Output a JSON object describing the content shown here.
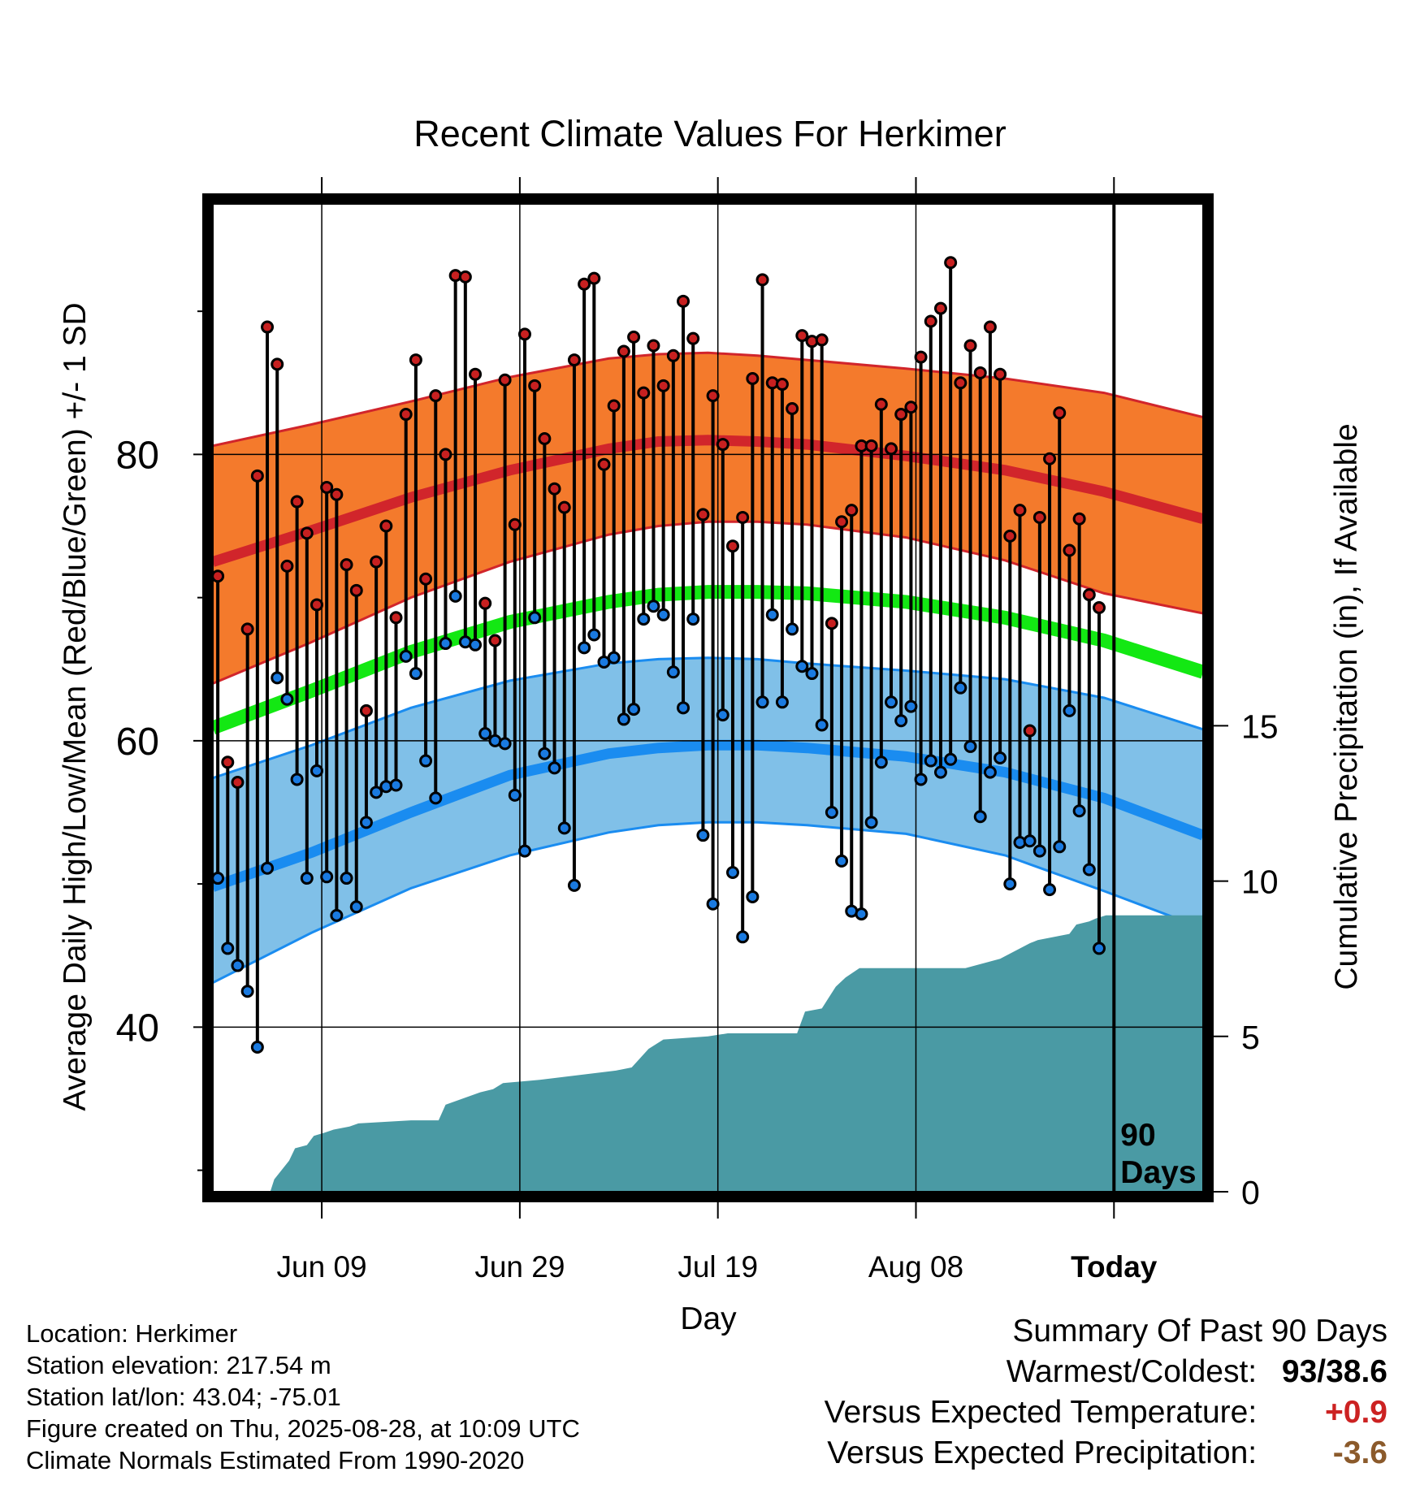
{
  "chart_data": {
    "type": "line",
    "title": "Recent Climate Values For Herkimer",
    "xlabel": "Day",
    "ylabel": "Average Daily High/Low/Mean (Red/Blue/Green) +/- 1 SD",
    "y2label": "Cumulative Precipitation (in), If Available",
    "x_tick_labels": [
      "Jun 09",
      "Jun 29",
      "Jul 19",
      "Aug 08",
      "Today"
    ],
    "x_tick_days": [
      11,
      31,
      51,
      71,
      91
    ],
    "x_range_days": [
      0,
      100
    ],
    "ylim": [
      28.5,
      97.5
    ],
    "y_ticks": [
      40,
      60,
      80
    ],
    "y_minor_ticks": [
      30,
      50,
      70,
      90
    ],
    "y2lim": [
      0,
      31.8
    ],
    "y2_ticks": [
      0,
      5,
      10,
      15
    ],
    "grid": true,
    "today_marker": "90\nDays",
    "normals": {
      "x": [
        0,
        10,
        20,
        30,
        40,
        45,
        50,
        55,
        60,
        70,
        80,
        90,
        100
      ],
      "high_mean": [
        72.5,
        74.7,
        77.0,
        78.9,
        80.4,
        80.9,
        81.0,
        80.9,
        80.7,
        79.9,
        78.9,
        77.4,
        75.5
      ],
      "high_plus": [
        80.6,
        82.1,
        83.7,
        85.4,
        86.7,
        87.0,
        87.1,
        86.9,
        86.6,
        86.0,
        85.3,
        84.3,
        82.6
      ],
      "high_minus": [
        64.0,
        66.9,
        70.0,
        72.5,
        74.4,
        75.0,
        75.3,
        75.3,
        75.1,
        74.2,
        72.6,
        70.3,
        68.9
      ],
      "low_mean": [
        49.8,
        52.2,
        55.0,
        57.6,
        59.1,
        59.5,
        59.7,
        59.7,
        59.5,
        58.9,
        57.8,
        56.0,
        53.4
      ],
      "low_plus": [
        57.4,
        59.7,
        62.3,
        64.2,
        65.4,
        65.7,
        65.8,
        65.7,
        65.4,
        64.9,
        64.3,
        63.0,
        60.8
      ],
      "low_minus": [
        43.1,
        46.6,
        49.7,
        52.0,
        53.6,
        54.1,
        54.3,
        54.3,
        54.1,
        53.5,
        52.0,
        49.5,
        46.9
      ],
      "mean": [
        60.9,
        63.5,
        66.2,
        68.3,
        69.7,
        70.2,
        70.4,
        70.4,
        70.3,
        69.7,
        68.6,
        67.0,
        64.8
      ]
    },
    "days": [
      0,
      1,
      2,
      3,
      4,
      5,
      6,
      7,
      8,
      9,
      10,
      11,
      12,
      13,
      14,
      15,
      16,
      17,
      18,
      19,
      20,
      21,
      22,
      23,
      24,
      25,
      26,
      27,
      28,
      29,
      30,
      31,
      32,
      33,
      34,
      35,
      36,
      37,
      38,
      39,
      40,
      41,
      42,
      43,
      44,
      45,
      46,
      47,
      48,
      49,
      50,
      51,
      52,
      53,
      54,
      55,
      56,
      57,
      58,
      59,
      60,
      61,
      62,
      63,
      64,
      65,
      66,
      67,
      68,
      69,
      70,
      71,
      72,
      73,
      74,
      75,
      76,
      77,
      78,
      79,
      80,
      81,
      82,
      83,
      84,
      85,
      86,
      87,
      88,
      89
    ],
    "daily_high": [
      71.5,
      58.5,
      57.1,
      67.8,
      78.5,
      88.9,
      86.3,
      72.2,
      76.7,
      74.5,
      69.5,
      77.7,
      77.2,
      72.3,
      70.5,
      62.1,
      72.5,
      75.0,
      68.6,
      82.8,
      86.6,
      71.3,
      84.1,
      80.0,
      92.5,
      92.4,
      85.6,
      69.6,
      67.0,
      85.2,
      75.1,
      88.4,
      84.8,
      81.1,
      77.6,
      76.3,
      86.6,
      91.9,
      92.3,
      79.3,
      83.4,
      87.2,
      88.2,
      84.3,
      87.6,
      84.8,
      86.9,
      90.7,
      88.1,
      75.8,
      84.1,
      80.7,
      73.6,
      75.6,
      85.3,
      92.2,
      85.0,
      84.9,
      83.2,
      88.3,
      87.9,
      88.0,
      68.2,
      75.3,
      76.1,
      80.6,
      80.6,
      83.5,
      80.4,
      82.8,
      83.3,
      86.8,
      89.3,
      90.2,
      93.4,
      85.0,
      87.6,
      85.7,
      88.9,
      85.6,
      74.3,
      76.1,
      60.7,
      75.6,
      79.7,
      82.9,
      73.3,
      75.5,
      70.2,
      69.3
    ],
    "daily_low": [
      50.4,
      45.5,
      44.3,
      42.5,
      38.6,
      51.1,
      64.4,
      62.9,
      57.3,
      50.4,
      57.9,
      50.5,
      47.8,
      50.4,
      48.4,
      54.3,
      56.4,
      56.8,
      56.9,
      65.9,
      64.7,
      58.6,
      56.0,
      66.8,
      70.1,
      66.9,
      66.7,
      60.5,
      60.0,
      59.8,
      56.2,
      52.3,
      68.6,
      59.1,
      58.1,
      53.9,
      49.9,
      66.5,
      67.4,
      65.5,
      65.8,
      61.5,
      62.2,
      68.5,
      69.4,
      68.8,
      64.8,
      62.3,
      68.5,
      53.4,
      48.6,
      61.8,
      50.8,
      46.3,
      49.1,
      62.7,
      68.8,
      62.7,
      67.8,
      65.2,
      64.7,
      61.1,
      55.0,
      51.6,
      48.1,
      47.9,
      54.3,
      58.5,
      62.7,
      61.4,
      62.4,
      57.3,
      58.6,
      57.8,
      58.7,
      63.7,
      59.6,
      54.7,
      57.8,
      58.8,
      50.0,
      52.9,
      53.0,
      52.3,
      49.6,
      52.6,
      62.1,
      55.1,
      51.0,
      45.5
    ],
    "precip_cum_x": [
      0,
      5.8,
      6.2,
      7.7,
      8.3,
      9.5,
      10.2,
      11.3,
      12.2,
      13.8,
      14.7,
      20,
      22.8,
      23.5,
      27,
      28.3,
      29.3,
      33,
      40.7,
      42.3,
      44,
      45.5,
      50,
      52,
      59,
      59.8,
      61.5,
      62.9,
      63.9,
      65.3,
      76,
      79.5,
      82.5,
      83.3,
      86.5,
      87.2,
      88.5,
      89.2,
      90.2,
      100
    ],
    "precip_cum_y": [
      0,
      0,
      0.4,
      1.0,
      1.4,
      1.5,
      1.8,
      1.9,
      2.0,
      2.1,
      2.2,
      2.3,
      2.3,
      2.8,
      3.2,
      3.3,
      3.5,
      3.6,
      3.9,
      4.0,
      4.6,
      4.9,
      5.0,
      5.1,
      5.1,
      5.8,
      5.9,
      6.6,
      6.9,
      7.2,
      7.2,
      7.5,
      8.0,
      8.1,
      8.3,
      8.6,
      8.7,
      8.8,
      8.9,
      8.9
    ],
    "colors": {
      "high_band": "#f47a2c",
      "high_line": "#d1252b",
      "low_band": "#80c0e8",
      "low_line": "#1a8cf0",
      "mean_line": "#13e813",
      "precip": "#4a9aa4",
      "high_point": "#c72020",
      "low_point": "#1a7ae0"
    }
  },
  "footer": {
    "location": "Location: Herkimer",
    "elevation": "Station elevation: 217.54 m",
    "latlon": "Station lat/lon: 43.04; -75.01",
    "created": "Figure created on Thu, 2025-08-28, at 10:09 UTC",
    "normals": "Climate Normals Estimated From 1990-2020"
  },
  "summary": {
    "title": "Summary Of Past 90 Days",
    "warmest_label": "Warmest/Coldest:",
    "warmest_value": "93/38.6",
    "temp_label": "Versus Expected Temperature:",
    "temp_value": "+0.9",
    "precip_label": "Versus Expected Precipitation:",
    "precip_value": "-3.6"
  }
}
